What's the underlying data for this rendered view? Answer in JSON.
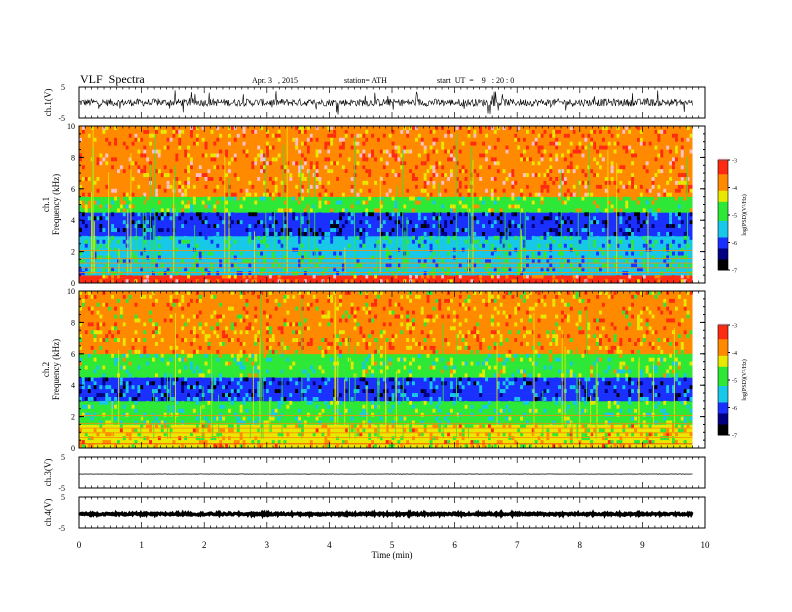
{
  "header": {
    "title": "VLF  Spectra",
    "date": "Apr. 3   , 2015",
    "station": "station= ATH",
    "start": "start  UT  =    9   : 20 : 0"
  },
  "colors": {
    "red": "#ff2a12",
    "orange": "#ff8a00",
    "yellow": "#e8e800",
    "green": "#2ee838",
    "cyan": "#18c8e8",
    "blue": "#1a30ff",
    "navy": "#000080",
    "black": "#000000",
    "pink": "#ffc0c8"
  },
  "chart_data": [
    {
      "type": "line",
      "panel": "ch1-waveform",
      "ylabel": "ch.1(V)",
      "ylim": [
        -5,
        5
      ],
      "y_ticks": [
        "5",
        "-5"
      ],
      "xlim": [
        0,
        10
      ],
      "x_extent_min": 9.8,
      "description_values": {
        "baseline_V": 0,
        "typical_amplitude_V": 1.2,
        "peak_amplitude_V": 4
      }
    },
    {
      "type": "heatmap",
      "panel": "ch1-spectrogram",
      "channel_label": "ch.1",
      "ylabel": "Frequency  (kHz)",
      "ylim": [
        0,
        10
      ],
      "y_ticks": [
        "0",
        "2",
        "4",
        "6",
        "8",
        "10"
      ],
      "xlim": [
        0,
        10
      ],
      "x_extent_min": 9.8,
      "colorbar": {
        "label": "log(PSD)(V²/Hz)",
        "range": [
          -7,
          -3
        ],
        "ticks": [
          "-3",
          "-4",
          "-5",
          "-6",
          "-7"
        ]
      },
      "band_levels": [
        {
          "freq_kHz": [
            5.5,
            10
          ],
          "logPSD": -3.6
        },
        {
          "freq_kHz": [
            4.5,
            5.5
          ],
          "logPSD": -4.6
        },
        {
          "freq_kHz": [
            3.0,
            4.5
          ],
          "logPSD": -6.2
        },
        {
          "freq_kHz": [
            0.6,
            3.0
          ],
          "logPSD": -5.4
        },
        {
          "freq_kHz": [
            0,
            0.6
          ],
          "logPSD": -3.5
        }
      ]
    },
    {
      "type": "heatmap",
      "panel": "ch2-spectrogram",
      "channel_label": "ch.2",
      "ylabel": "Frequency  (kHz)",
      "ylim": [
        0,
        10
      ],
      "y_ticks": [
        "0",
        "2",
        "4",
        "6",
        "8",
        "10"
      ],
      "xlim": [
        0,
        10
      ],
      "x_extent_min": 9.8,
      "colorbar": {
        "label": "log(PSD)(V²/Hz)",
        "range": [
          -7,
          -3
        ],
        "ticks": [
          "-3",
          "-4",
          "-5",
          "-6",
          "-7"
        ]
      },
      "band_levels": [
        {
          "freq_kHz": [
            6.0,
            10
          ],
          "logPSD": -3.9
        },
        {
          "freq_kHz": [
            4.5,
            6.0
          ],
          "logPSD": -4.8
        },
        {
          "freq_kHz": [
            3.0,
            4.5
          ],
          "logPSD": -6.0
        },
        {
          "freq_kHz": [
            1.5,
            3.0
          ],
          "logPSD": -5.0
        },
        {
          "freq_kHz": [
            0,
            1.5
          ],
          "logPSD": -4.2
        }
      ]
    },
    {
      "type": "line",
      "panel": "ch3-waveform",
      "ylabel": "ch.3(V)",
      "ylim": [
        -5,
        5
      ],
      "y_ticks": [
        "5",
        "-5"
      ],
      "xlim": [
        0,
        10
      ],
      "x_extent_min": 9.8,
      "description_values": {
        "baseline_V": -0.5,
        "typical_amplitude_V": 0.05
      }
    },
    {
      "type": "line",
      "panel": "ch4-waveform",
      "ylabel": "ch.4(V)",
      "ylim": [
        -5,
        5
      ],
      "y_ticks": [
        "5",
        "-5"
      ],
      "xlim": [
        0,
        10
      ],
      "x_extent_min": 9.8,
      "description_values": {
        "baseline_V": -0.5,
        "typical_amplitude_V": 0.3
      }
    }
  ],
  "xaxis": {
    "label": "Time  (min)",
    "ticks": [
      "0",
      "1",
      "2",
      "3",
      "4",
      "5",
      "6",
      "7",
      "8",
      "9",
      "10"
    ]
  }
}
